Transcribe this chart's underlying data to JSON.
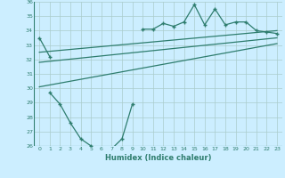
{
  "xlabel": "Humidex (Indice chaleur)",
  "bg_color": "#cceeff",
  "grid_color": "#aacccc",
  "line_color": "#2e7d6e",
  "x": [
    0,
    1,
    2,
    3,
    4,
    5,
    6,
    7,
    8,
    9,
    10,
    11,
    12,
    13,
    14,
    15,
    16,
    17,
    18,
    19,
    20,
    21,
    22,
    23
  ],
  "y_main": [
    33.5,
    32.2,
    null,
    null,
    null,
    null,
    null,
    null,
    null,
    null,
    34.1,
    34.1,
    34.5,
    34.3,
    34.6,
    35.8,
    34.4,
    35.5,
    34.4,
    34.6,
    34.6,
    34.0,
    33.9,
    33.8
  ],
  "y_lower": [
    null,
    29.7,
    28.9,
    27.6,
    26.5,
    26.0,
    25.8,
    25.8,
    26.5,
    28.9,
    null,
    null,
    null,
    null,
    null,
    null,
    null,
    null,
    null,
    null,
    null,
    null,
    null,
    null
  ],
  "line1_x": [
    0,
    23
  ],
  "line1_y": [
    32.5,
    34.0
  ],
  "line2_x": [
    0,
    23
  ],
  "line2_y": [
    31.8,
    33.5
  ],
  "line3_x": [
    0,
    23
  ],
  "line3_y": [
    30.1,
    33.1
  ],
  "ylim": [
    26,
    36
  ],
  "xlim": [
    -0.5,
    23.5
  ],
  "yticks": [
    26,
    27,
    28,
    29,
    30,
    31,
    32,
    33,
    34,
    35,
    36
  ],
  "xticks": [
    0,
    1,
    2,
    3,
    4,
    5,
    6,
    7,
    8,
    9,
    10,
    11,
    12,
    13,
    14,
    15,
    16,
    17,
    18,
    19,
    20,
    21,
    22,
    23
  ]
}
